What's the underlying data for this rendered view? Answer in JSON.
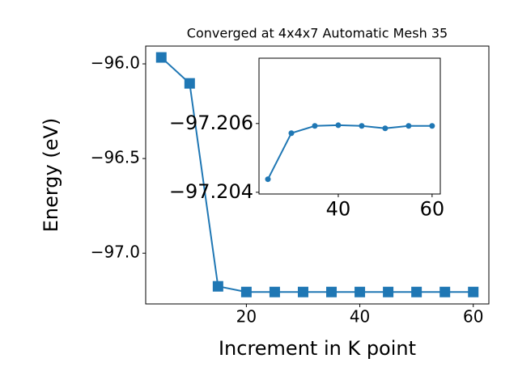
{
  "chart_data": [
    {
      "type": "line",
      "title": "Converged at 4x4x7 Automatic Mesh 35",
      "x_label": "Increment in K point",
      "y_label": "Energy (eV)",
      "x": [
        5,
        10,
        15,
        20,
        25,
        30,
        35,
        40,
        45,
        50,
        55,
        60
      ],
      "series": [
        {
          "color": "#1f77b4",
          "marker": "square",
          "values": [
            -95.966,
            -96.103,
            -97.175,
            -97.205,
            -97.205,
            -97.205,
            -97.205,
            -97.205,
            -97.205,
            -97.205,
            -97.205,
            -97.205
          ]
        }
      ],
      "xlim": [
        2.25,
        62.75
      ],
      "xticks": [
        20,
        40,
        60
      ],
      "ylim": [
        -97.268,
        -95.906
      ],
      "yticks": [
        {
          "value": -96.0,
          "label": "−96.0"
        },
        {
          "value": -96.5,
          "label": "−96.5"
        },
        {
          "value": -97.0,
          "label": "−97.0"
        }
      ]
    },
    {
      "type": "line",
      "x": [
        25,
        30,
        35,
        40,
        45,
        50,
        55,
        60
      ],
      "series": [
        {
          "color": "#1f77b4",
          "marker": "circle",
          "values": [
            -97.20438,
            -97.20572,
            -97.20593,
            -97.20595,
            -97.20593,
            -97.20586,
            -97.20593,
            -97.20593
          ]
        }
      ],
      "xlim": [
        23.1,
        61.75
      ],
      "xticks": [
        40,
        60
      ],
      "ylim": [
        -97.20395,
        -97.2079
      ],
      "yticks": [
        {
          "value": -97.206,
          "label": "−97.206"
        },
        {
          "value": -97.204,
          "label": "−97.204"
        }
      ]
    }
  ]
}
